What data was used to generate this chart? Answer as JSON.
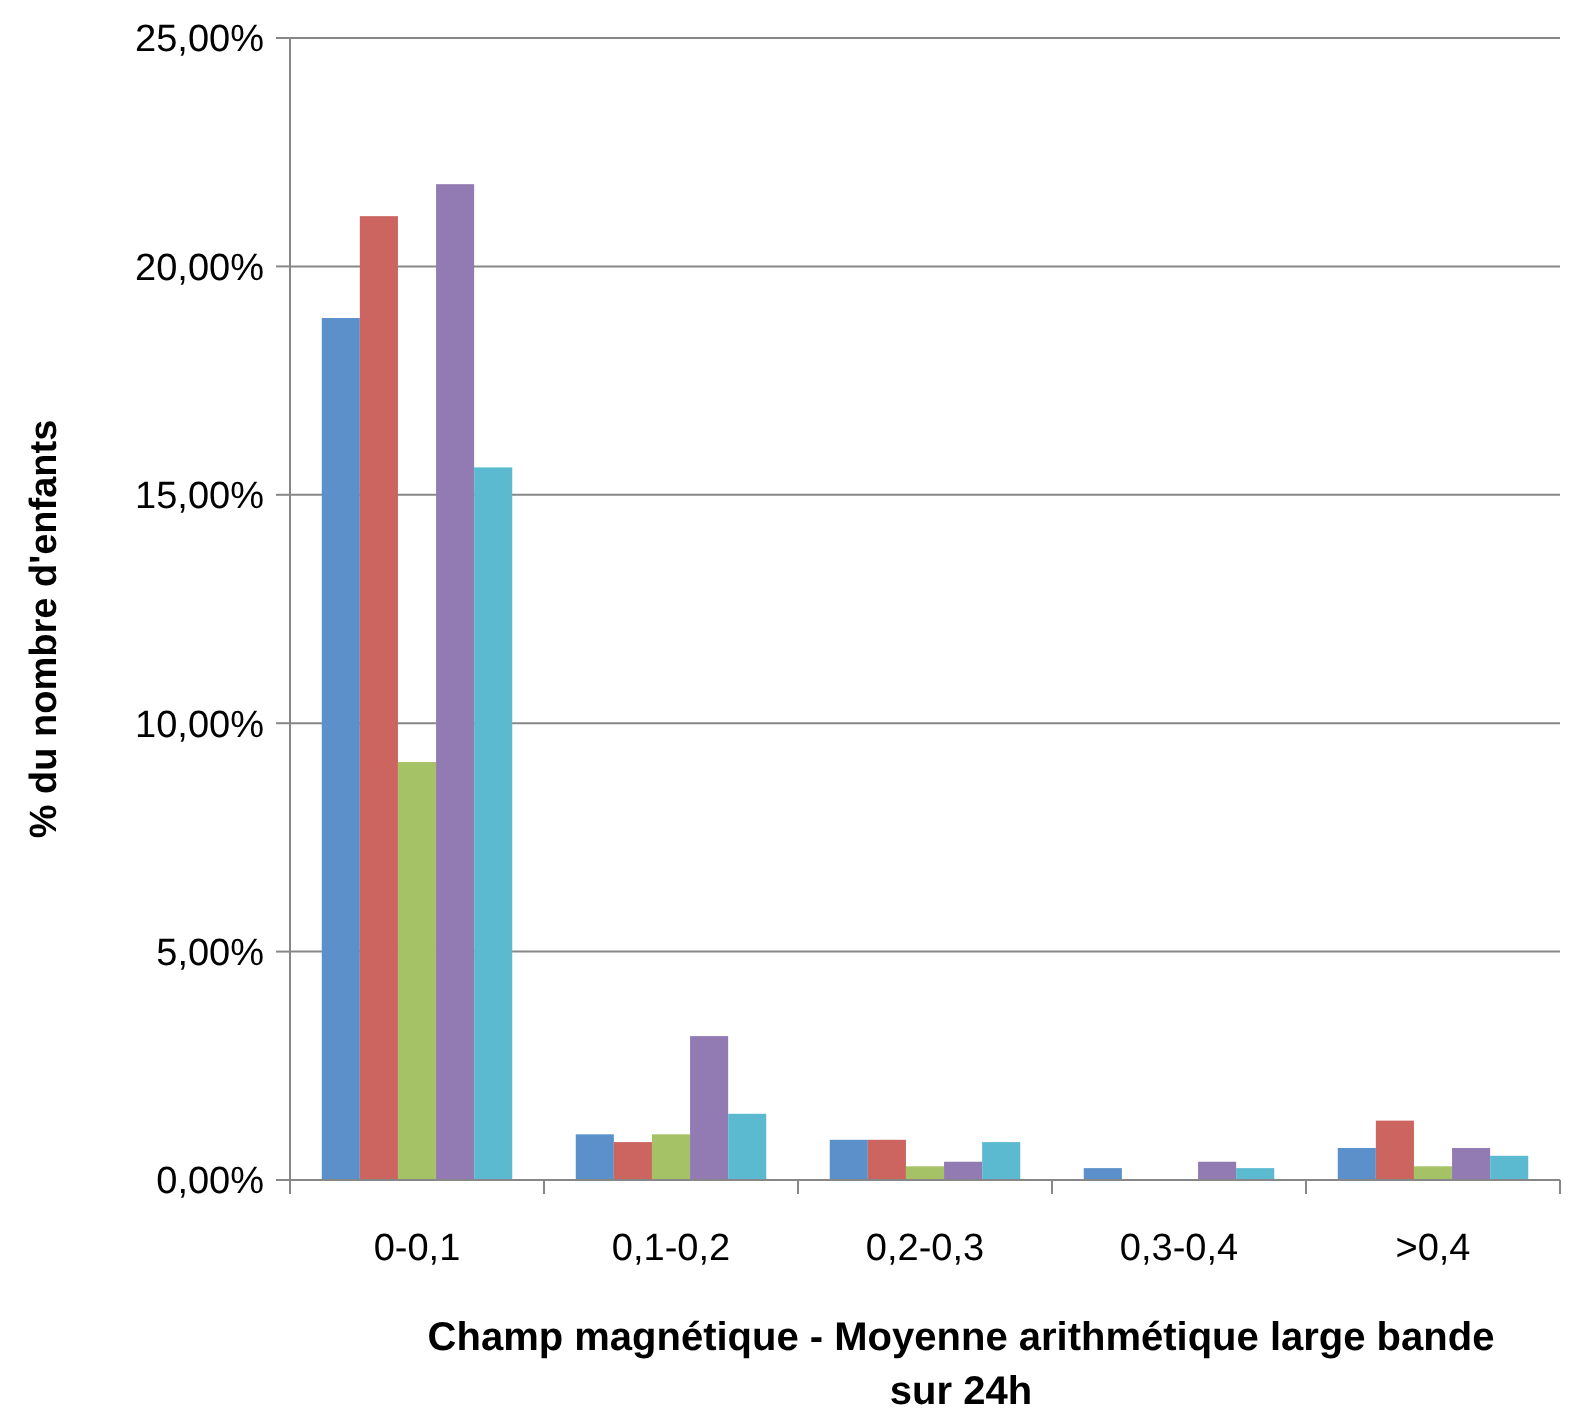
{
  "chart_data": {
    "type": "bar",
    "xlabel": "Champ magnétique - Moyenne arithmétique large bande sur 24h",
    "ylabel": "% du nombre d'enfants",
    "categories": [
      "0-0,1",
      "0,1-0,2",
      "0,2-0,3",
      "0,3-0,4",
      ">0,4"
    ],
    "series": [
      {
        "color": "#5b90cb",
        "values": [
          18.87,
          1.0,
          0.88,
          0.26,
          0.7
        ]
      },
      {
        "color": "#cc6560",
        "values": [
          21.1,
          0.83,
          0.88,
          0,
          1.3
        ]
      },
      {
        "color": "#a6c266",
        "values": [
          9.15,
          1.0,
          0.3,
          0,
          0.3
        ]
      },
      {
        "color": "#927bb3",
        "values": [
          21.8,
          3.15,
          0.4,
          0.4,
          0.7
        ]
      },
      {
        "color": "#5bbad0",
        "values": [
          15.6,
          1.45,
          0.83,
          0.26,
          0.53
        ]
      }
    ],
    "ylim": [
      0,
      25
    ],
    "yticks": [
      {
        "value": 0,
        "label": "0,00%"
      },
      {
        "value": 5,
        "label": "5,00%"
      },
      {
        "value": 10,
        "label": "10,00%"
      },
      {
        "value": 15,
        "label": "15,00%"
      },
      {
        "value": 20,
        "label": "20,00%"
      },
      {
        "value": 25,
        "label": "25,00%"
      }
    ],
    "grid": "y"
  }
}
